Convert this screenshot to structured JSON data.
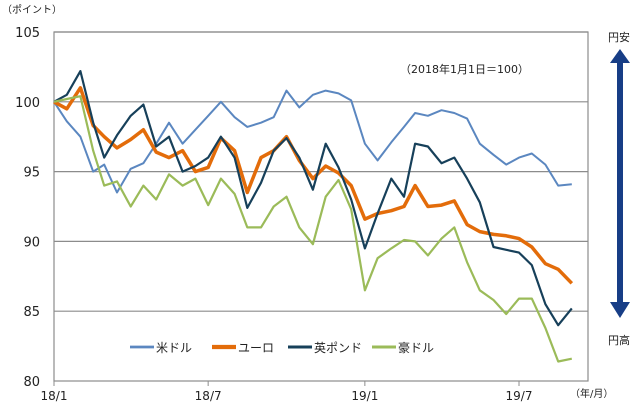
{
  "chart_data": {
    "type": "line",
    "unit_label": "（ポイント）",
    "note": "（2018年1月1日＝100）",
    "x_axis_unit": "（年/月）",
    "ylim": [
      80,
      105
    ],
    "yticks": [
      80,
      85,
      90,
      95,
      100,
      105
    ],
    "xticks": [
      {
        "date": "2018-01-01",
        "label": "18/1"
      },
      {
        "date": "2018-07-01",
        "label": "18/7"
      },
      {
        "date": "2019-01-01",
        "label": "19/1"
      },
      {
        "date": "2019-07-01",
        "label": "19/7"
      }
    ],
    "xlim": [
      "2018-01-01",
      "2019-09-20"
    ],
    "grid": true,
    "legend_position": "bottom",
    "x": [
      "2018-01-01",
      "2018-01-16",
      "2018-02-01",
      "2018-02-16",
      "2018-03-01",
      "2018-03-16",
      "2018-04-01",
      "2018-04-16",
      "2018-05-01",
      "2018-05-16",
      "2018-06-01",
      "2018-06-16",
      "2018-07-01",
      "2018-07-16",
      "2018-08-01",
      "2018-08-16",
      "2018-09-01",
      "2018-09-16",
      "2018-10-01",
      "2018-10-16",
      "2018-11-01",
      "2018-11-16",
      "2018-12-01",
      "2018-12-16",
      "2019-01-01",
      "2019-01-16",
      "2019-02-01",
      "2019-02-16",
      "2019-03-01",
      "2019-03-16",
      "2019-04-01",
      "2019-04-16",
      "2019-05-01",
      "2019-05-16",
      "2019-06-01",
      "2019-06-16",
      "2019-07-01",
      "2019-07-16",
      "2019-08-01",
      "2019-08-16",
      "2019-09-01"
    ],
    "series": [
      {
        "name": "米ドル",
        "color": "#5b87c0",
        "width": 2,
        "values": [
          100,
          98.6,
          97.5,
          95.0,
          95.5,
          93.5,
          95.2,
          95.6,
          97.0,
          98.5,
          97.0,
          98.0,
          99.0,
          100.0,
          98.9,
          98.2,
          98.5,
          98.9,
          100.8,
          99.6,
          100.5,
          100.8,
          100.6,
          100.1,
          97.0,
          95.8,
          97.1,
          98.2,
          99.2,
          99.0,
          99.4,
          99.2,
          98.8,
          97.0,
          96.2,
          95.5,
          96.0,
          96.3,
          95.5,
          94.0,
          94.1
        ]
      },
      {
        "name": "ユーロ",
        "color": "#e36c0a",
        "width": 3.5,
        "values": [
          100,
          99.5,
          101.0,
          98.3,
          97.5,
          96.7,
          97.3,
          98.0,
          96.4,
          96.0,
          96.5,
          95.0,
          95.3,
          97.4,
          96.5,
          93.5,
          96.0,
          96.5,
          97.5,
          95.8,
          94.5,
          95.4,
          94.9,
          94.0,
          91.6,
          92.0,
          92.2,
          92.5,
          94.0,
          92.5,
          92.6,
          92.9,
          91.2,
          90.7,
          90.5,
          90.4,
          90.2,
          89.6,
          88.4,
          88.0,
          87.0
        ]
      },
      {
        "name": "英ポンド",
        "color": "#17405a",
        "width": 2.2,
        "values": [
          100,
          100.5,
          102.2,
          98.5,
          96.0,
          97.6,
          99.0,
          99.8,
          96.8,
          97.5,
          95.0,
          95.4,
          96.0,
          97.5,
          96.0,
          92.4,
          94.2,
          96.5,
          97.4,
          96.0,
          93.7,
          97.0,
          95.3,
          93.0,
          89.5,
          92.0,
          94.5,
          93.2,
          97.0,
          96.8,
          95.6,
          96.0,
          94.5,
          92.8,
          89.6,
          89.4,
          89.2,
          88.3,
          85.5,
          84.0,
          85.2
        ]
      },
      {
        "name": "豪ドル",
        "color": "#9bbb59",
        "width": 2.2,
        "values": [
          100,
          100.2,
          100.4,
          96.5,
          94.0,
          94.3,
          92.5,
          94.0,
          93.0,
          94.8,
          94.0,
          94.5,
          92.6,
          94.5,
          93.4,
          91.0,
          91.0,
          92.5,
          93.2,
          91.0,
          89.8,
          93.2,
          94.4,
          92.3,
          86.5,
          88.8,
          89.5,
          90.1,
          90.0,
          89.0,
          90.2,
          91.0,
          88.5,
          86.5,
          85.8,
          84.8,
          85.9,
          85.9,
          83.8,
          81.4,
          81.6
        ]
      }
    ]
  },
  "side_arrow": {
    "top_label": "円安",
    "bottom_label": "円高",
    "color": "#173d86"
  }
}
